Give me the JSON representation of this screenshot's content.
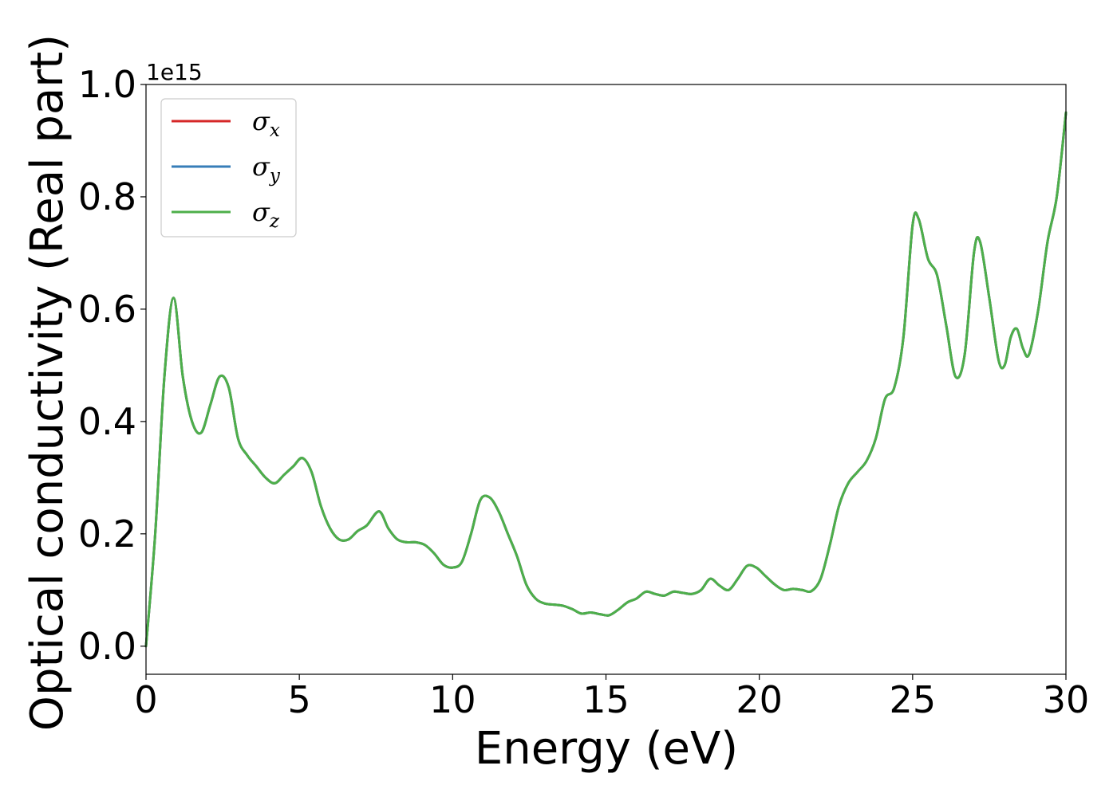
{
  "chart_data": {
    "type": "line",
    "xlabel": "Energy (eV)",
    "ylabel": "Optical conductivity (Real part)",
    "offset_text": "1e15",
    "xlim": [
      0,
      30
    ],
    "ylim": [
      -0.05,
      1.0
    ],
    "xticks": [
      0,
      5,
      10,
      15,
      20,
      25,
      30
    ],
    "xtick_labels": [
      "0",
      "5",
      "10",
      "15",
      "20",
      "25",
      "30"
    ],
    "yticks": [
      0.0,
      0.2,
      0.4,
      0.6,
      0.8,
      1.0
    ],
    "ytick_labels": [
      "0.0",
      "0.2",
      "0.4",
      "0.6",
      "0.8",
      "1.0"
    ],
    "grid": false,
    "legend_position": "upper-left",
    "y_scale_multiplier": 1000000000000000.0,
    "x": [
      0,
      0.3,
      0.6,
      0.9,
      1.2,
      1.5,
      1.8,
      2.1,
      2.4,
      2.7,
      3.0,
      3.3,
      3.6,
      3.9,
      4.2,
      4.5,
      4.8,
      5.1,
      5.4,
      5.7,
      6.0,
      6.3,
      6.6,
      6.9,
      7.2,
      7.6,
      7.9,
      8.2,
      8.5,
      8.8,
      9.1,
      9.4,
      9.7,
      10.0,
      10.3,
      10.6,
      10.9,
      11.2,
      11.5,
      11.8,
      12.1,
      12.4,
      12.7,
      13.0,
      13.3,
      13.6,
      13.9,
      14.2,
      14.5,
      14.8,
      15.1,
      15.4,
      15.7,
      16.0,
      16.3,
      16.6,
      16.9,
      17.2,
      17.5,
      17.8,
      18.1,
      18.4,
      18.7,
      19.0,
      19.3,
      19.6,
      19.9,
      20.2,
      20.5,
      20.8,
      21.1,
      21.4,
      21.7,
      22.0,
      22.3,
      22.6,
      22.9,
      23.2,
      23.5,
      23.8,
      24.1,
      24.4,
      24.7,
      25.0,
      25.2,
      25.5,
      25.8,
      26.1,
      26.4,
      26.7,
      27.0,
      27.2,
      27.5,
      27.8,
      28.0,
      28.2,
      28.4,
      28.6,
      28.8,
      29.1,
      29.4,
      29.7,
      30.0
    ],
    "series": [
      {
        "name": "σx",
        "color": "#d62728",
        "values": [
          0.0,
          0.2,
          0.48,
          0.62,
          0.48,
          0.4,
          0.38,
          0.43,
          0.48,
          0.46,
          0.37,
          0.34,
          0.32,
          0.3,
          0.29,
          0.305,
          0.32,
          0.335,
          0.31,
          0.25,
          0.21,
          0.19,
          0.19,
          0.205,
          0.215,
          0.24,
          0.21,
          0.19,
          0.185,
          0.185,
          0.18,
          0.165,
          0.145,
          0.14,
          0.15,
          0.2,
          0.26,
          0.265,
          0.24,
          0.2,
          0.16,
          0.11,
          0.085,
          0.076,
          0.074,
          0.072,
          0.066,
          0.058,
          0.06,
          0.057,
          0.055,
          0.065,
          0.078,
          0.085,
          0.097,
          0.093,
          0.09,
          0.097,
          0.095,
          0.093,
          0.1,
          0.12,
          0.108,
          0.1,
          0.12,
          0.143,
          0.14,
          0.125,
          0.11,
          0.1,
          0.102,
          0.1,
          0.098,
          0.12,
          0.18,
          0.25,
          0.29,
          0.31,
          0.33,
          0.37,
          0.44,
          0.46,
          0.55,
          0.75,
          0.76,
          0.69,
          0.66,
          0.57,
          0.48,
          0.52,
          0.7,
          0.72,
          0.62,
          0.51,
          0.5,
          0.55,
          0.565,
          0.53,
          0.52,
          0.6,
          0.72,
          0.8,
          0.95
        ]
      },
      {
        "name": "σy",
        "color": "#377eb8",
        "values": [
          0.0,
          0.2,
          0.48,
          0.62,
          0.48,
          0.4,
          0.38,
          0.43,
          0.48,
          0.46,
          0.37,
          0.34,
          0.32,
          0.3,
          0.29,
          0.305,
          0.32,
          0.335,
          0.31,
          0.25,
          0.21,
          0.19,
          0.19,
          0.205,
          0.215,
          0.24,
          0.21,
          0.19,
          0.185,
          0.185,
          0.18,
          0.165,
          0.145,
          0.14,
          0.15,
          0.2,
          0.26,
          0.265,
          0.24,
          0.2,
          0.16,
          0.11,
          0.085,
          0.076,
          0.074,
          0.072,
          0.066,
          0.058,
          0.06,
          0.057,
          0.055,
          0.065,
          0.078,
          0.085,
          0.097,
          0.093,
          0.09,
          0.097,
          0.095,
          0.093,
          0.1,
          0.12,
          0.108,
          0.1,
          0.12,
          0.143,
          0.14,
          0.125,
          0.11,
          0.1,
          0.102,
          0.1,
          0.098,
          0.12,
          0.18,
          0.25,
          0.29,
          0.31,
          0.33,
          0.37,
          0.44,
          0.46,
          0.55,
          0.75,
          0.76,
          0.69,
          0.66,
          0.57,
          0.48,
          0.52,
          0.7,
          0.72,
          0.62,
          0.51,
          0.5,
          0.55,
          0.565,
          0.53,
          0.52,
          0.6,
          0.72,
          0.8,
          0.95
        ]
      },
      {
        "name": "σz",
        "color": "#4daf4a",
        "values": [
          0.0,
          0.2,
          0.48,
          0.62,
          0.48,
          0.4,
          0.38,
          0.43,
          0.48,
          0.46,
          0.37,
          0.34,
          0.32,
          0.3,
          0.29,
          0.305,
          0.32,
          0.335,
          0.31,
          0.25,
          0.21,
          0.19,
          0.19,
          0.205,
          0.215,
          0.24,
          0.21,
          0.19,
          0.185,
          0.185,
          0.18,
          0.165,
          0.145,
          0.14,
          0.15,
          0.2,
          0.26,
          0.265,
          0.24,
          0.2,
          0.16,
          0.11,
          0.085,
          0.076,
          0.074,
          0.072,
          0.066,
          0.058,
          0.06,
          0.057,
          0.055,
          0.065,
          0.078,
          0.085,
          0.097,
          0.093,
          0.09,
          0.097,
          0.095,
          0.093,
          0.1,
          0.12,
          0.108,
          0.1,
          0.12,
          0.143,
          0.14,
          0.125,
          0.11,
          0.1,
          0.102,
          0.1,
          0.098,
          0.12,
          0.18,
          0.25,
          0.29,
          0.31,
          0.33,
          0.37,
          0.44,
          0.46,
          0.55,
          0.75,
          0.76,
          0.69,
          0.66,
          0.57,
          0.48,
          0.52,
          0.7,
          0.72,
          0.62,
          0.51,
          0.5,
          0.55,
          0.565,
          0.53,
          0.52,
          0.6,
          0.72,
          0.8,
          0.95
        ]
      }
    ],
    "legend": [
      {
        "symbol": "σ",
        "subscript": "x",
        "color": "#d62728"
      },
      {
        "symbol": "σ",
        "subscript": "y",
        "color": "#377eb8"
      },
      {
        "symbol": "σ",
        "subscript": "z",
        "color": "#4daf4a"
      }
    ]
  }
}
